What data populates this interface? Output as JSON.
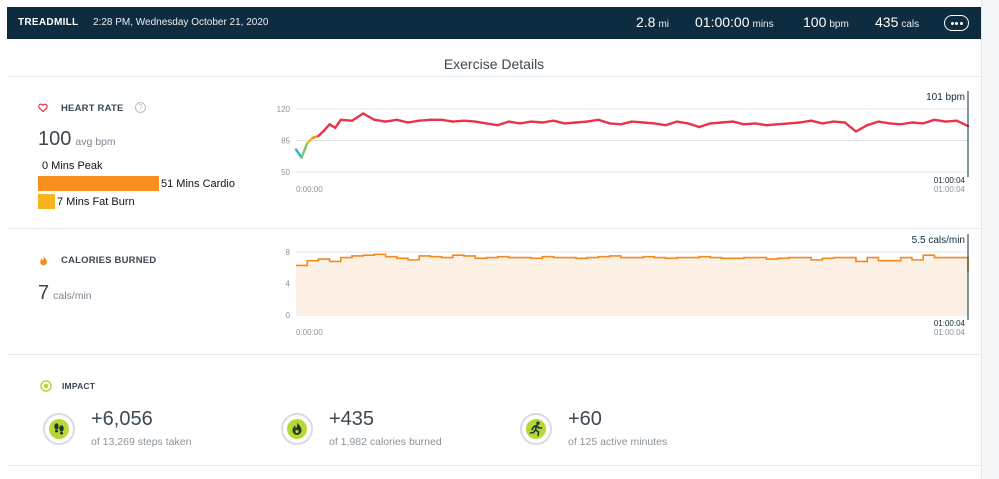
{
  "header": {
    "activity": "TREADMILL",
    "datetime": "2:28 PM, Wednesday October 21, 2020",
    "stats": [
      {
        "value": "2.8",
        "unit": "mi"
      },
      {
        "value": "01:00:00",
        "unit": "mins"
      },
      {
        "value": "100",
        "unit": "bpm"
      },
      {
        "value": "435",
        "unit": "cals"
      }
    ],
    "menu_icon": "ellipsis-icon"
  },
  "page_title": "Exercise Details",
  "heart_rate": {
    "label": "HEART RATE",
    "help": "?",
    "avg_value": "100",
    "avg_unit": "avg bpm",
    "zones": [
      {
        "label": "0 Mins Peak",
        "minutes": 0,
        "color": "#f4511e"
      },
      {
        "label": "51 Mins Cardio",
        "minutes": 51,
        "color": "#f7901e"
      },
      {
        "label": "7 Mins Fat Burn",
        "minutes": 7,
        "color": "#f9b31c"
      }
    ],
    "accent": "#e8334a"
  },
  "calories": {
    "label": "CALORIES BURNED",
    "avg_value": "7",
    "avg_unit": "cals/min",
    "accent": "#f28a1c"
  },
  "impact": {
    "label": "IMPACT",
    "items": [
      {
        "icon": "footprints-icon",
        "value": "+6,056",
        "sub": "of 13,269 steps taken"
      },
      {
        "icon": "flame-icon",
        "value": "+435",
        "sub": "of 1,982 calories burned"
      },
      {
        "icon": "running-person-icon",
        "value": "+60",
        "sub": "of 125 active minutes"
      }
    ],
    "accent": "#b8d634"
  },
  "chart_data": [
    {
      "type": "line",
      "title": "Heart Rate",
      "xlabel": "",
      "ylabel": "bpm",
      "ylim": [
        50,
        120
      ],
      "yticks": [
        50,
        85,
        120
      ],
      "x_start_label": "0:00:00",
      "x_end_label": "01:00:04",
      "x_end_label_secondary": "01:00:04",
      "cursor_label": "101 bpm",
      "duration_min": 60,
      "series": [
        {
          "name": "Heart rate",
          "x": [
            0,
            0.5,
            1,
            1.5,
            2,
            2.5,
            3,
            3.5,
            4,
            5,
            6,
            7,
            8,
            9,
            10,
            11,
            12,
            13,
            14,
            15,
            16,
            17,
            18,
            19,
            20,
            21,
            22,
            23,
            24,
            25,
            26,
            27,
            28,
            29,
            30,
            31,
            32,
            33,
            34,
            35,
            36,
            37,
            38,
            39,
            40,
            41,
            42,
            43,
            44,
            45,
            46,
            47,
            48,
            49,
            50,
            51,
            52,
            53,
            54,
            55,
            56,
            57,
            58,
            59,
            60
          ],
          "values": [
            75,
            66,
            82,
            88,
            90,
            96,
            103,
            99,
            108,
            107,
            115,
            108,
            106,
            108,
            105,
            107,
            108,
            108,
            106,
            107,
            106,
            104,
            102,
            106,
            104,
            106,
            105,
            107,
            104,
            105,
            106,
            108,
            104,
            103,
            106,
            105,
            104,
            102,
            106,
            104,
            100,
            104,
            105,
            106,
            103,
            104,
            102,
            103,
            104,
            105,
            107,
            104,
            106,
            105,
            95,
            102,
            106,
            104,
            103,
            105,
            104,
            108,
            106,
            107,
            101
          ]
        }
      ]
    },
    {
      "type": "area",
      "title": "Calories Burned",
      "xlabel": "",
      "ylabel": "cals/min",
      "ylim": [
        0,
        8
      ],
      "yticks": [
        0,
        4,
        8
      ],
      "x_start_label": "0:00:00",
      "x_end_label": "01:00:04",
      "x_end_label_secondary": "01:00:04",
      "cursor_label": "5.5 cals/min",
      "duration_min": 60,
      "series": [
        {
          "name": "Calories per minute",
          "x": [
            0,
            1,
            2,
            3,
            4,
            5,
            6,
            7,
            8,
            9,
            10,
            11,
            12,
            13,
            14,
            15,
            16,
            17,
            18,
            19,
            20,
            21,
            22,
            23,
            24,
            25,
            26,
            27,
            28,
            29,
            30,
            31,
            32,
            33,
            34,
            35,
            36,
            37,
            38,
            39,
            40,
            41,
            42,
            43,
            44,
            45,
            46,
            47,
            48,
            49,
            50,
            51,
            52,
            53,
            54,
            55,
            56,
            57,
            58,
            59,
            60
          ],
          "values": [
            6.3,
            6.9,
            7.1,
            6.8,
            7.3,
            7.5,
            7.6,
            7.7,
            7.4,
            7.2,
            7.0,
            7.5,
            7.4,
            7.3,
            7.6,
            7.5,
            7.2,
            7.3,
            7.4,
            7.3,
            7.3,
            7.2,
            7.4,
            7.3,
            7.3,
            7.2,
            7.3,
            7.4,
            7.5,
            7.3,
            7.3,
            7.4,
            7.3,
            7.2,
            7.3,
            7.3,
            7.4,
            7.3,
            7.2,
            7.2,
            7.3,
            7.3,
            7.1,
            7.2,
            7.3,
            7.3,
            7.0,
            7.2,
            7.3,
            7.3,
            6.8,
            7.3,
            6.9,
            6.9,
            7.3,
            7.0,
            7.6,
            7.3,
            7.3,
            7.3,
            5.5
          ]
        }
      ]
    }
  ]
}
